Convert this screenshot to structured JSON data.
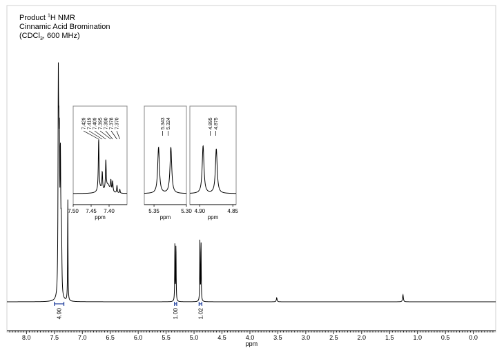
{
  "title": {
    "line1_prefix": "Product ",
    "line1_sup": "1",
    "line1_suffix": "H NMR",
    "line2": "Cinnamic Acid Bromination",
    "line3_prefix": "(CDCl",
    "line3_sub": "3",
    "line3_suffix": ", 600 MHz)"
  },
  "chart_data": {
    "type": "line",
    "title": "Product 1H NMR Cinnamic Acid Bromination (CDCl3, 600 MHz)",
    "xlabel": "ppm",
    "ylabel": "",
    "x_reversed": true,
    "xlim": [
      8.35,
      -0.4
    ],
    "ticks": [
      "8.0",
      "7.5",
      "7.0",
      "6.5",
      "6.0",
      "5.5",
      "5.0",
      "4.5",
      "4.0",
      "3.5",
      "3.0",
      "2.5",
      "2.0",
      "1.5",
      "1.0",
      "0.5",
      "0.0"
    ],
    "grid": false,
    "peaks": [
      {
        "ppm": 7.43,
        "height": 0.98,
        "width": 0.006
      },
      {
        "ppm": 7.42,
        "height": 0.52,
        "width": 0.006
      },
      {
        "ppm": 7.41,
        "height": 0.6,
        "width": 0.006
      },
      {
        "ppm": 7.395,
        "height": 0.4,
        "width": 0.006
      },
      {
        "ppm": 7.39,
        "height": 0.35,
        "width": 0.006
      },
      {
        "ppm": 7.378,
        "height": 0.25,
        "width": 0.006
      },
      {
        "ppm": 7.37,
        "height": 0.18,
        "width": 0.006
      },
      {
        "ppm": 7.26,
        "height": 0.52,
        "width": 0.004
      },
      {
        "ppm": 5.343,
        "height": 0.29,
        "width": 0.004
      },
      {
        "ppm": 5.324,
        "height": 0.29,
        "width": 0.004
      },
      {
        "ppm": 4.895,
        "height": 0.31,
        "width": 0.004
      },
      {
        "ppm": 4.875,
        "height": 0.3,
        "width": 0.004
      },
      {
        "ppm": 3.52,
        "height": 0.02,
        "width": 0.008
      },
      {
        "ppm": 1.26,
        "height": 0.035,
        "width": 0.008
      }
    ],
    "integrals": [
      {
        "from": 7.5,
        "to": 7.33,
        "center": 7.42,
        "value": "4.90"
      },
      {
        "from": 5.35,
        "to": 5.31,
        "center": 5.333,
        "value": "1.00"
      },
      {
        "from": 4.91,
        "to": 4.86,
        "center": 4.885,
        "value": "1.02"
      }
    ],
    "insets": [
      {
        "xlim": [
          7.5,
          7.35
        ],
        "ticks": [
          "7.50",
          "7.45",
          "7.40"
        ],
        "tick_values": [
          7.5,
          7.45,
          7.4
        ],
        "xlabel": "ppm",
        "peak_labels": [
          "7.429",
          "7.419",
          "7.409",
          "7.395",
          "7.390",
          "7.378",
          "7.370"
        ]
      },
      {
        "xlim": [
          5.365,
          5.3
        ],
        "ticks": [
          "5.35",
          "5.30"
        ],
        "tick_values": [
          5.35,
          5.3
        ],
        "xlabel": "ppm",
        "peak_labels": [
          "5.343",
          "5.324"
        ]
      },
      {
        "xlim": [
          4.915,
          4.845
        ],
        "ticks": [
          "4.90",
          "4.85"
        ],
        "tick_values": [
          4.9,
          4.85
        ],
        "xlabel": "ppm",
        "peak_labels": [
          "4.895",
          "4.875"
        ]
      }
    ]
  }
}
